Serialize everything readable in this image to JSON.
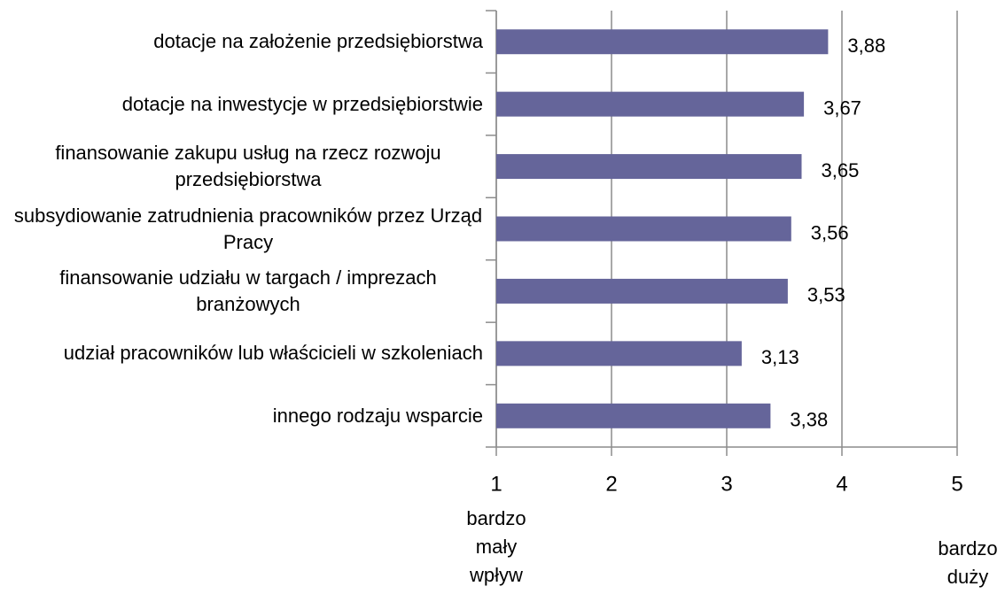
{
  "chart_data": {
    "type": "barh",
    "categories": [
      "dotacje na założenie przedsiębiorstwa",
      "dotacje na inwestycje w przedsiębiorstwie",
      "finansowanie zakupu usług na rzecz rozwoju przedsiębiorstwa",
      "subsydiowanie zatrudnienia pracowników przez Urząd Pracy",
      "finansowanie udziału w targach / imprezach branżowych",
      "udział pracowników lub właścicieli w szkoleniach",
      "innego rodzaju wsparcie"
    ],
    "values": [
      3.88,
      3.67,
      3.65,
      3.56,
      3.53,
      3.13,
      3.38
    ],
    "value_labels": [
      "3,88",
      "3,67",
      "3,65",
      "3,56",
      "3,53",
      "3,13",
      "3,38"
    ],
    "color": "#65659a",
    "xlim": [
      1,
      5
    ],
    "xticks": [
      1,
      2,
      3,
      4,
      5
    ],
    "grid": true,
    "x_end_labels": [
      "bardzo mały wpływ",
      "bardzo duży wpływ"
    ]
  }
}
